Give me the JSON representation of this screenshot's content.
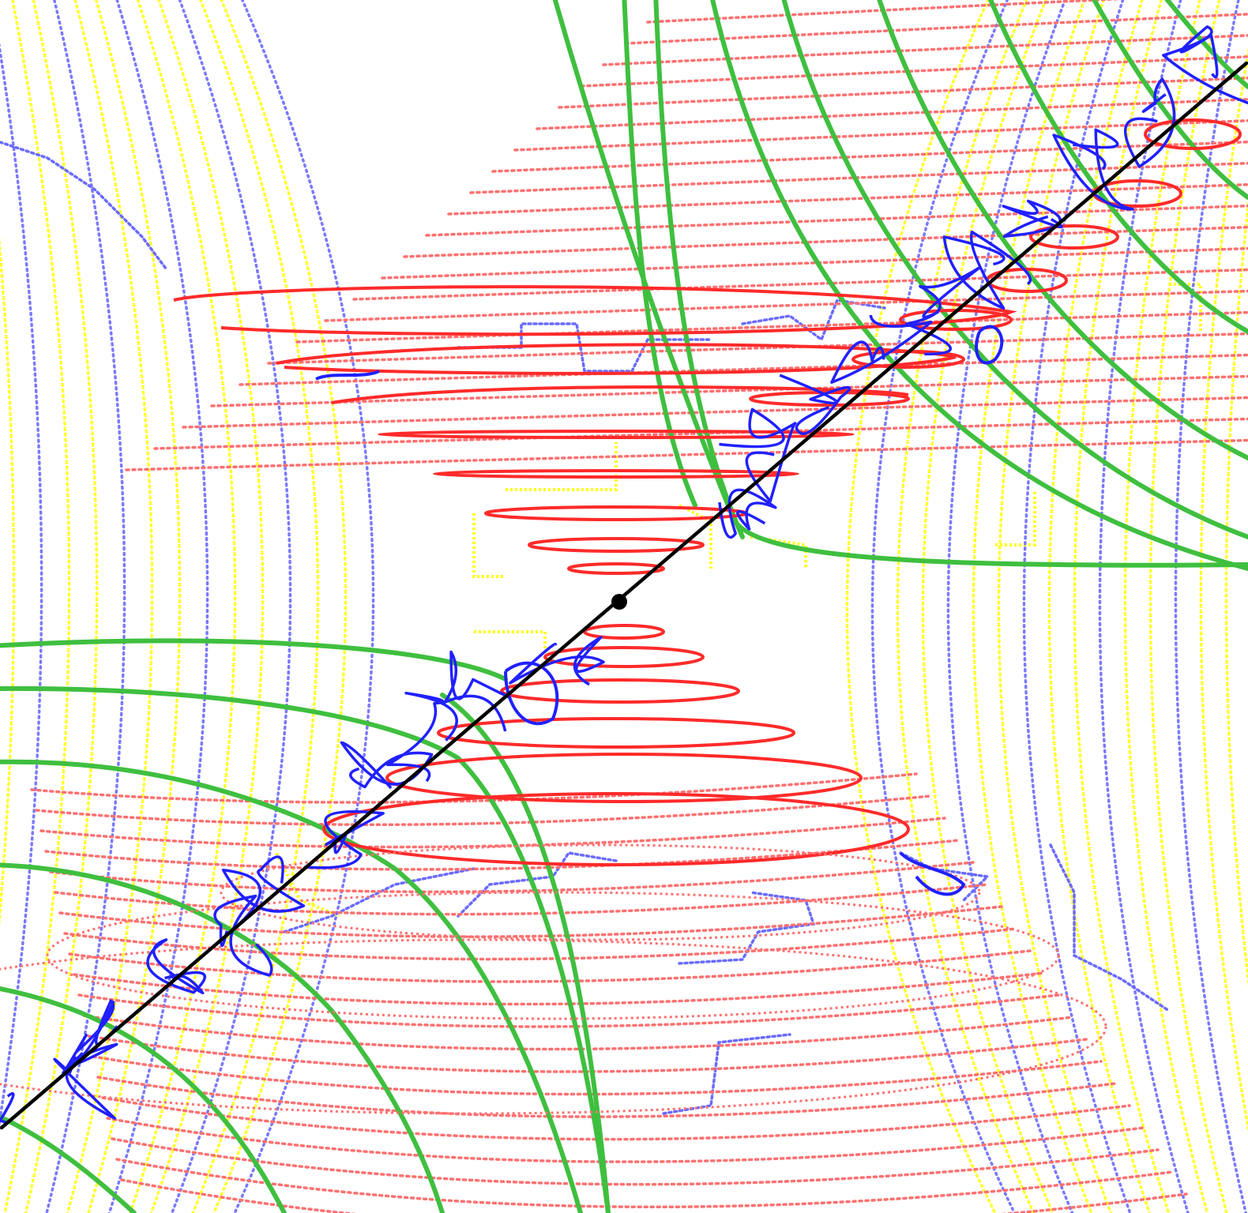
{
  "scene": {
    "kind": "3D point-cloud visualization with colored curve families and a diagonal axis line",
    "background": "#ffffff",
    "colors": {
      "red_rings": "#ff2a2a",
      "red_rings_faded": "#ff7070",
      "blue_contours": "#2020ff",
      "blue_contours_faded": "#6a6aff",
      "yellow_arcs": "#ffff1a",
      "green_curves": "#3fbf3f",
      "axis_line": "#000000"
    },
    "families": [
      "red-ring",
      "blue-contour",
      "yellow-arc",
      "green-curve",
      "axis-line",
      "center-marker"
    ]
  }
}
